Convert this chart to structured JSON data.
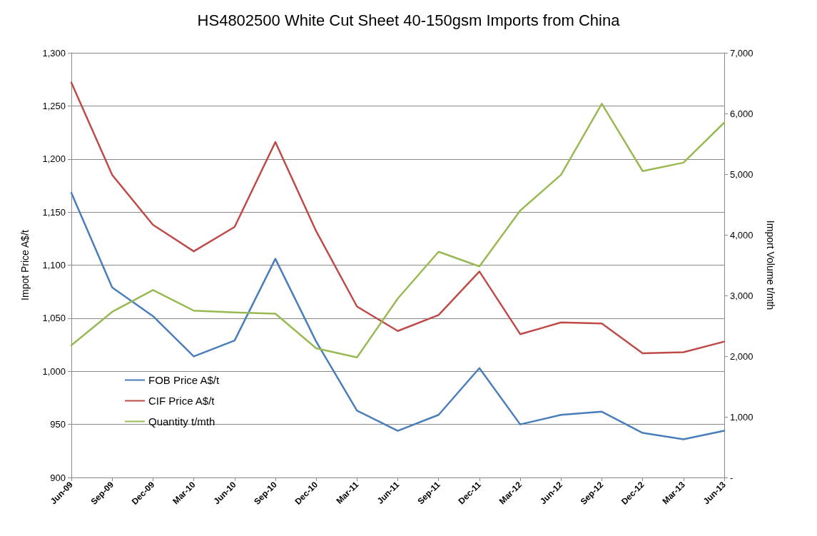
{
  "chart_data": {
    "type": "line",
    "title": "HS4802500 White Cut Sheet 40-150gsm Imports from China",
    "ylabel": "Impot Price A$/t",
    "y2label": "Import Volume t/mth",
    "categories": [
      "Jun-09",
      "Sep-09",
      "Dec-09",
      "Mar-10",
      "Jun-10",
      "Sep-10",
      "Dec-10",
      "Mar-11",
      "Jun-11",
      "Sep-11",
      "Dec-11",
      "Mar-12",
      "Jun-12",
      "Sep-12",
      "Dec-12",
      "Mar-13",
      "Jun-13"
    ],
    "series": [
      {
        "name": "FOB Price A$/t",
        "color": "#4a7ebb",
        "values": [
          1168,
          1079,
          1052,
          1014,
          1029,
          1106,
          1028,
          963,
          944,
          959,
          1003,
          950,
          959,
          962,
          942,
          936,
          944
        ]
      },
      {
        "name": "CIF Price A$/t",
        "color": "#be4b48",
        "values": [
          1272,
          1185,
          1138,
          1113,
          1136,
          1216,
          1132,
          1061,
          1038,
          1053,
          1094,
          1035,
          1046,
          1045,
          1017,
          1018,
          1028
        ]
      },
      {
        "name": "Quantity t/mth",
        "color": "#98b954",
        "axis": "y2",
        "values": [
          2180,
          2730,
          3090,
          2750,
          2720,
          2700,
          2130,
          1980,
          2950,
          3720,
          3480,
          4400,
          4990,
          6160,
          5050,
          5190,
          5850
        ]
      }
    ],
    "ylim": [
      900,
      1300
    ],
    "yticks": [
      {
        "value": 900,
        "label": "900"
      },
      {
        "value": 950,
        "label": "950"
      },
      {
        "value": 1000,
        "label": "1,000"
      },
      {
        "value": 1050,
        "label": "1,050"
      },
      {
        "value": 1100,
        "label": "1,100"
      },
      {
        "value": 1150,
        "label": "1,150"
      },
      {
        "value": 1200,
        "label": "1,200"
      },
      {
        "value": 1250,
        "label": "1,250"
      },
      {
        "value": 1300,
        "label": "1,300"
      }
    ],
    "y2lim": [
      0,
      7000
    ],
    "y2ticks": [
      {
        "value": 0,
        "label": "-"
      },
      {
        "value": 1000,
        "label": "1,000"
      },
      {
        "value": 2000,
        "label": "2,000"
      },
      {
        "value": 3000,
        "label": "3,000"
      },
      {
        "value": 4000,
        "label": "4,000"
      },
      {
        "value": 5000,
        "label": "5,000"
      },
      {
        "value": 6000,
        "label": "6,000"
      },
      {
        "value": 7000,
        "label": "7,000"
      }
    ],
    "grid": "y",
    "legend": "bottom left",
    "marker": "none",
    "line_style": "solid"
  }
}
